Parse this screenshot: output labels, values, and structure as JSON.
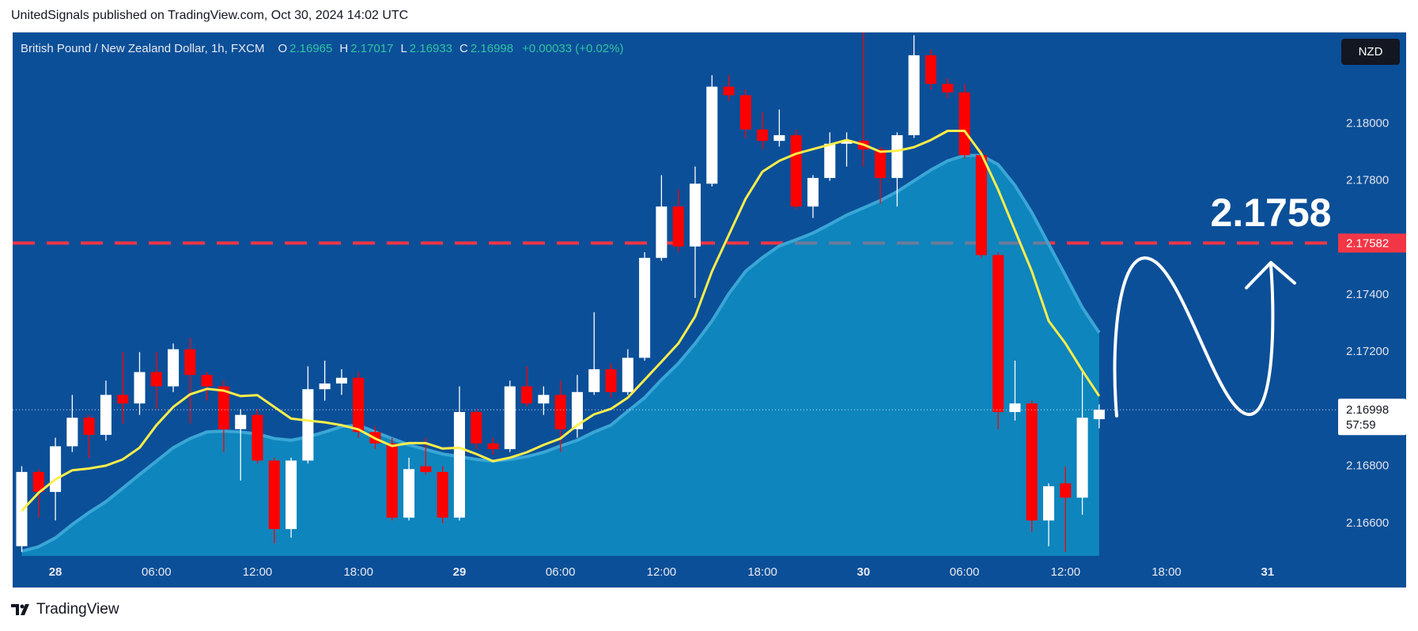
{
  "chart_data": {
    "type": "candlestick",
    "caption": "UnitedSignals published on TradingView.com, Oct 30, 2024 14:02 UTC",
    "title": "British Pound / New Zealand Dollar, 1h, FXCM",
    "legend_keys": [
      "O",
      "H",
      "L",
      "C"
    ],
    "change": "+0.00033 (+0.02%)",
    "currency": "NZD",
    "countdown": "57:59",
    "annotation": "2.1758",
    "brand": "TradingView",
    "up_color": "#ffffff",
    "down_color": "#ff0000",
    "grid": false,
    "x": [
      0,
      1,
      2,
      3,
      4,
      5,
      6,
      7,
      8,
      9,
      10,
      11,
      12,
      13,
      14,
      15,
      16,
      17,
      18,
      19,
      20,
      21,
      22,
      23,
      24,
      25,
      26,
      27,
      28,
      29,
      30,
      31,
      32,
      33,
      34,
      35,
      36,
      37,
      38,
      39,
      40,
      41,
      42,
      43,
      44,
      45,
      46,
      47,
      48,
      49,
      50,
      51,
      52,
      53,
      54,
      55,
      56,
      57,
      58,
      59,
      60,
      61,
      62,
      63,
      64
    ],
    "candles": {
      "open": [
        2.1652,
        2.1678,
        2.1671,
        2.1687,
        2.1697,
        2.1691,
        2.1705,
        2.1702,
        2.1713,
        2.1708,
        2.1721,
        2.1712,
        2.1708,
        2.1693,
        2.1698,
        2.1682,
        2.1658,
        2.1682,
        2.1707,
        2.1709,
        2.1711,
        2.1692,
        2.1688,
        2.1662,
        2.168,
        2.1678,
        2.1662,
        2.1699,
        2.1688,
        2.1686,
        2.1708,
        2.1702,
        2.1705,
        2.1693,
        2.1706,
        2.1714,
        2.1706,
        2.1718,
        2.1753,
        2.1771,
        2.1757,
        2.1779,
        2.1813,
        2.181,
        2.1798,
        2.1794,
        2.1796,
        2.1771,
        2.1781,
        2.1793,
        2.1794,
        2.1791,
        2.1781,
        2.1796,
        2.1824,
        2.1814,
        2.1811,
        2.1789,
        2.1754,
        2.1699,
        2.1702,
        2.1661,
        2.1674,
        2.1669,
        2.16965
      ],
      "high": [
        2.168,
        2.1679,
        2.169,
        2.1705,
        2.1698,
        2.171,
        2.172,
        2.172,
        2.172,
        2.1723,
        2.1725,
        2.1713,
        2.171,
        2.17,
        2.17,
        2.1683,
        2.1683,
        2.1715,
        2.1717,
        2.1714,
        2.1713,
        2.1694,
        2.169,
        2.1683,
        2.169,
        2.168,
        2.1708,
        2.17,
        2.169,
        2.171,
        2.1715,
        2.1708,
        2.171,
        2.1712,
        2.1734,
        2.1716,
        2.1721,
        2.1755,
        2.1782,
        2.1777,
        2.1785,
        2.1817,
        2.1817,
        2.1812,
        2.1804,
        2.1805,
        2.1798,
        2.1782,
        2.1797,
        2.1797,
        2.1832,
        2.1792,
        2.1797,
        2.1831,
        2.1826,
        2.1816,
        2.1814,
        2.1791,
        2.1755,
        2.1717,
        2.1703,
        2.1674,
        2.168,
        2.1714,
        2.17017
      ],
      "low": [
        2.165,
        2.1662,
        2.1661,
        2.1685,
        2.1683,
        2.1689,
        2.1695,
        2.1698,
        2.17,
        2.1706,
        2.1695,
        2.1703,
        2.1685,
        2.1675,
        2.1681,
        2.1653,
        2.1655,
        2.1681,
        2.1703,
        2.1705,
        2.169,
        2.1686,
        2.1661,
        2.1661,
        2.1677,
        2.166,
        2.1661,
        2.1686,
        2.1684,
        2.1685,
        2.1701,
        2.1698,
        2.1685,
        2.169,
        2.1705,
        2.1704,
        2.1705,
        2.1717,
        2.1752,
        2.1755,
        2.1739,
        2.1778,
        2.1808,
        2.1795,
        2.1791,
        2.1792,
        2.177,
        2.1767,
        2.178,
        2.1785,
        2.1785,
        2.1772,
        2.1771,
        2.1795,
        2.1812,
        2.1809,
        2.1788,
        2.1753,
        2.1693,
        2.1696,
        2.1657,
        2.1652,
        2.165,
        2.1663,
        2.16933
      ],
      "close": [
        2.1678,
        2.1671,
        2.1687,
        2.1697,
        2.1691,
        2.1705,
        2.1702,
        2.1713,
        2.1708,
        2.1721,
        2.1712,
        2.1708,
        2.1693,
        2.1698,
        2.1682,
        2.1658,
        2.1682,
        2.1707,
        2.1709,
        2.1711,
        2.1692,
        2.1688,
        2.1662,
        2.1679,
        2.1678,
        2.1662,
        2.1699,
        2.1688,
        2.1686,
        2.1708,
        2.1702,
        2.1705,
        2.1693,
        2.1706,
        2.1714,
        2.1706,
        2.1718,
        2.1753,
        2.1771,
        2.1757,
        2.1779,
        2.1813,
        2.181,
        2.1798,
        2.1794,
        2.1796,
        2.1771,
        2.1781,
        2.1793,
        2.1794,
        2.1791,
        2.1781,
        2.1796,
        2.1824,
        2.1814,
        2.1811,
        2.1789,
        2.1754,
        2.1699,
        2.1702,
        2.1661,
        2.1673,
        2.1669,
        2.1697,
        2.16998
      ]
    },
    "lines": [
      {
        "color": "#3aa6d6",
        "fill": "rgba(16,170,214,0.6)",
        "values": [
          2.16502,
          2.16518,
          2.16549,
          2.16596,
          2.16638,
          2.16676,
          2.16723,
          2.16771,
          2.16818,
          2.16865,
          2.16897,
          2.1692,
          2.16923,
          2.1692,
          2.16913,
          2.16897,
          2.16891,
          2.16903,
          2.1692,
          2.16939,
          2.16944,
          2.1692,
          2.16897,
          2.16875,
          2.16859,
          2.16843,
          2.16834,
          2.16824,
          2.16818,
          2.16824,
          2.16834,
          2.16849,
          2.16871,
          2.16891,
          2.1692,
          2.16944,
          2.16993,
          2.1704,
          2.17103,
          2.1716,
          2.1723,
          2.17309,
          2.17404,
          2.17483,
          2.17531,
          2.17572,
          2.17594,
          2.17617,
          2.17648,
          2.1768,
          2.17705,
          2.17731,
          2.17762,
          2.178,
          2.17838,
          2.1787,
          2.17889,
          2.17889,
          2.17857,
          2.17784,
          2.17689,
          2.17578,
          2.17468,
          2.17356,
          2.17268
        ]
      },
      {
        "color": "#ffee4a",
        "values": [
          2.16644,
          2.16707,
          2.16754,
          2.16786,
          2.16792,
          2.16802,
          2.16824,
          2.16865,
          2.16944,
          2.17008,
          2.17052,
          2.17071,
          2.17065,
          2.17046,
          2.17049,
          2.17008,
          2.16967,
          2.1696,
          2.16954,
          2.16944,
          2.16929,
          2.16897,
          2.16871,
          2.16881,
          2.16881,
          2.16862,
          2.16865,
          2.16843,
          2.16818,
          2.1683,
          2.16849,
          2.16875,
          2.16897,
          2.16944,
          2.16982,
          2.17001,
          2.1704,
          2.17103,
          2.17166,
          2.1723,
          2.17325,
          2.17483,
          2.1761,
          2.17737,
          2.17832,
          2.1787,
          2.17895,
          2.17911,
          2.17927,
          2.17943,
          2.17927,
          2.17902,
          2.17905,
          2.17918,
          2.17943,
          2.17975,
          2.17975,
          2.17895,
          2.17769,
          2.17626,
          2.17483,
          2.17309,
          2.1723,
          2.17135,
          2.17046
        ]
      }
    ],
    "level": {
      "value": 2.17582,
      "color": "#f23645"
    },
    "xlim": [
      -0.54,
      78.1
    ],
    "ylim": [
      2.16486,
      2.1832
    ],
    "xticks": [
      {
        "value": 2,
        "label": "28"
      },
      {
        "value": 8,
        "label": "06:00"
      },
      {
        "value": 14,
        "label": "12:00"
      },
      {
        "value": 20,
        "label": "18:00"
      },
      {
        "value": 26,
        "label": "29"
      },
      {
        "value": 32,
        "label": "06:00"
      },
      {
        "value": 38,
        "label": "12:00"
      },
      {
        "value": 44,
        "label": "18:00"
      },
      {
        "value": 50,
        "label": "30"
      },
      {
        "value": 56,
        "label": "06:00"
      },
      {
        "value": 62,
        "label": "12:00"
      },
      {
        "value": 68,
        "label": "18:00"
      },
      {
        "value": 74,
        "label": "31"
      }
    ],
    "yticks": [
      {
        "value": 2.166,
        "label": "2.16600"
      },
      {
        "value": 2.168,
        "label": "2.16800"
      },
      {
        "value": 2.172,
        "label": "2.17200"
      },
      {
        "value": 2.174,
        "label": "2.17400"
      },
      {
        "value": 2.178,
        "label": "2.17800"
      },
      {
        "value": 2.18,
        "label": "2.18000"
      }
    ]
  }
}
